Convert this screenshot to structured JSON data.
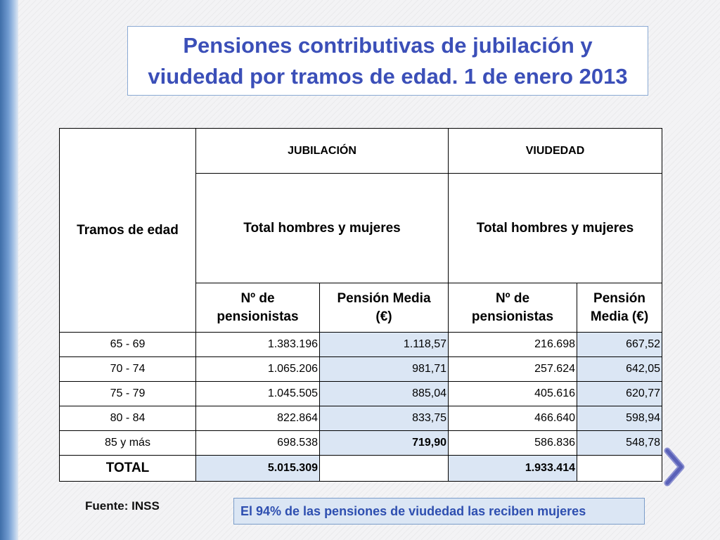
{
  "title_line1": "Pensiones contributivas  de jubilación y",
  "title_line2": "viudedad por tramos de edad. 1 de enero 2013",
  "table": {
    "header": {
      "tramos": "Tramos de edad",
      "jubilacion": "JUBILACIÓN",
      "viudedad": "VIUDEDAD",
      "jub_total": "Total hombres y mujeres",
      "viu_total": "Total hombres y mujeres",
      "jub_num_line1": "Nº de",
      "jub_num_line2": "pensionistas",
      "jub_media_line1": "Pensión  Media",
      "jub_media_line2": "(€)",
      "viu_num_line1": "Nº de",
      "viu_num_line2": "pensionistas",
      "viu_media_line1": "Pensión",
      "viu_media_line2": "Media (€)"
    },
    "rows": [
      {
        "tramo": "65 - 69",
        "jub_num": "1.383.196",
        "jub_media": "1.118,57",
        "viu_num": "216.698",
        "viu_media": "667,52"
      },
      {
        "tramo": "70 - 74",
        "jub_num": "1.065.206",
        "jub_media": "981,71",
        "viu_num": "257.624",
        "viu_media": "642,05"
      },
      {
        "tramo": "75 - 79",
        "jub_num": "1.045.505",
        "jub_media": "885,04",
        "viu_num": "405.616",
        "viu_media": "620,77"
      },
      {
        "tramo": "80 - 84",
        "jub_num": "822.864",
        "jub_media": "833,75",
        "viu_num": "466.640",
        "viu_media": "598,94"
      },
      {
        "tramo": "85  y más",
        "jub_num": "698.538",
        "jub_media": "719,90",
        "viu_num": "586.836",
        "viu_media": "548,78"
      }
    ],
    "total": {
      "label": "TOTAL",
      "jub_num": "5.015.309",
      "jub_media": "",
      "viu_num": "1.933.414",
      "viu_media": ""
    }
  },
  "source": "Fuente: INSS",
  "note": "El 94% de las pensiones de viudedad las reciben mujeres",
  "icons": {
    "next": "chevron-right-icon"
  },
  "colors": {
    "title": "#3b4fb8",
    "shade": "#dbe6f4",
    "accent_bar": "#3f6ea8"
  }
}
